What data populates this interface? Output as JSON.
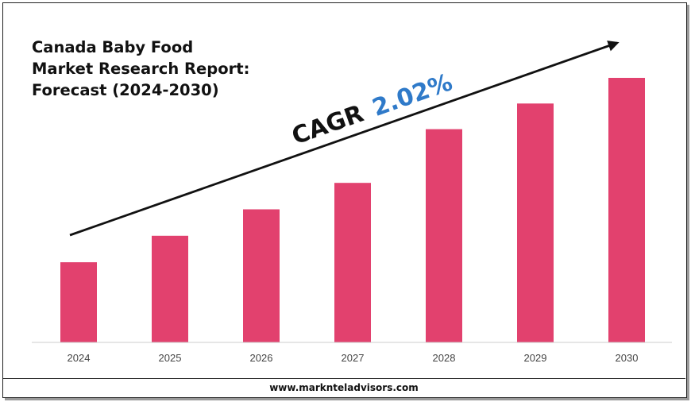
{
  "chart_data": {
    "type": "bar",
    "title_lines": [
      "Canada Baby Food",
      "Market Research Report:",
      "Forecast (2024-2030)"
    ],
    "categories": [
      "2024",
      "2025",
      "2026",
      "2027",
      "2028",
      "2029",
      "2030"
    ],
    "values": [
      1.0,
      1.33,
      1.66,
      1.99,
      2.66,
      2.98,
      3.3
    ],
    "ylim": [
      0,
      3.3
    ],
    "xlabel": "",
    "ylabel": "",
    "grid": false,
    "annotation": {
      "label": "CAGR",
      "value": "2.02%"
    },
    "colors": {
      "bar": "#e2416e",
      "arrow": "#111111",
      "cagr_value": "#2f7ac9"
    }
  },
  "footer": {
    "url": "www.marknteladvisors.com"
  }
}
